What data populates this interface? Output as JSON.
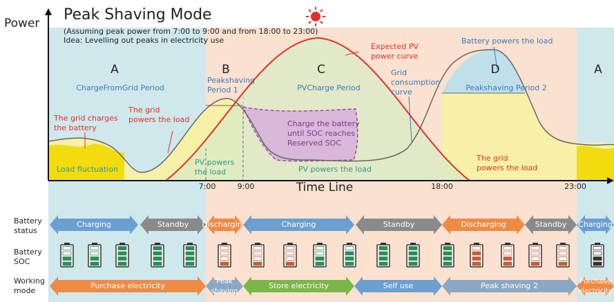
{
  "header": {
    "title": "Peak Shaving Mode",
    "subtitle": [
      "(Assuming peak power from 7:00 to 9:00 and from 18:00 to 23:00)",
      "Idea: Levelling out peaks in electricity use"
    ]
  },
  "chart": {
    "y_label": "Power",
    "x_label": "Time Line",
    "xticks": [
      "7:00",
      "9:00",
      "18:00",
      "23:00"
    ],
    "periods": [
      {
        "letter": "A",
        "name": [
          "ChargeFromGrid Period"
        ]
      },
      {
        "letter": "B",
        "name": [
          "Peakshaving",
          "Period 1"
        ]
      },
      {
        "letter": "C",
        "name": [
          "PVCharge Period"
        ]
      },
      {
        "letter": "D",
        "name": [
          "Peakshaving Period 2"
        ]
      },
      {
        "letter": "A"
      }
    ],
    "annotations": {
      "pv_curve": [
        "Expected PV",
        "power curve"
      ],
      "battery_load": [
        "Battery powers the load"
      ],
      "grid_curve": [
        "Grid",
        "consumption",
        "curve"
      ],
      "grid_charges": [
        "The grid charges",
        "the battery"
      ],
      "grid_powers_1": [
        "The grid",
        "powers the load"
      ],
      "charge_battery": [
        "Charge the battery",
        "until SOC reaches",
        "Reserved SOC"
      ],
      "load_fluctuation": [
        "Load fluctuation"
      ],
      "pv_powers_1": [
        "PV powers",
        "the load"
      ],
      "pv_powers_2": [
        "PV powers the load"
      ],
      "grid_powers_2": [
        "The grid",
        "powers the load"
      ]
    }
  },
  "rows": {
    "status": {
      "label": [
        "Battery",
        "status"
      ],
      "items": [
        [
          "Charging"
        ],
        [
          "Standby"
        ],
        [
          "Discharging"
        ],
        [
          "Charging"
        ],
        [
          "Standby"
        ],
        [
          "Discharging"
        ],
        [
          "Standby"
        ],
        [
          "Charging"
        ]
      ]
    },
    "soc": {
      "label": [
        "Battery",
        "SOC"
      ]
    },
    "mode": {
      "label": [
        "Working",
        "mode"
      ],
      "items": [
        [
          "Purchase electricity"
        ],
        [
          "Peak",
          "shaving"
        ],
        [
          "Store electricity"
        ],
        [
          "Self use"
        ],
        [
          "Peak shaving 2"
        ],
        [
          "Purchase",
          "electricity"
        ]
      ]
    }
  }
}
